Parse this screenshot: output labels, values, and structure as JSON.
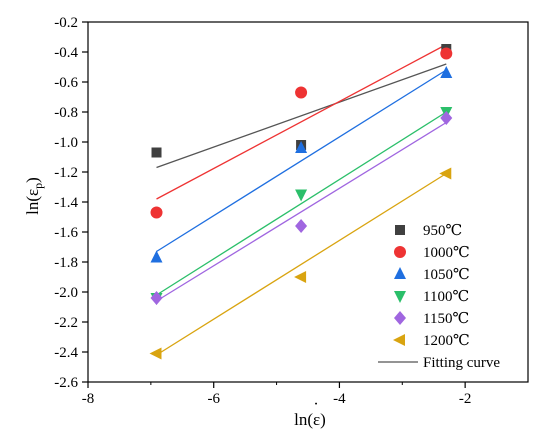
{
  "chart_data": {
    "type": "scatter",
    "xlabel": "ln(ε)",
    "ylabel_main": "ln(ε",
    "ylabel_sub": "p",
    "ylabel_close": ")",
    "xlim": [
      -8,
      -1
    ],
    "ylim": [
      -2.6,
      -0.2
    ],
    "xticks": [
      -8,
      -6,
      -4,
      -2
    ],
    "xtick_labels": [
      "-8",
      "-6",
      "-4",
      "-2"
    ],
    "yticks": [
      -0.2,
      -0.4,
      -0.6,
      -0.8,
      -1.0,
      -1.2,
      -1.4,
      -1.6,
      -1.8,
      -2.0,
      -2.2,
      -2.4,
      -2.6
    ],
    "ytick_labels": [
      "-0.2",
      "-0.4",
      "-0.6",
      "-0.8",
      "-1.0",
      "-1.2",
      "-1.4",
      "-1.6",
      "-1.8",
      "-2.0",
      "-2.2",
      "-2.4",
      "-2.6"
    ],
    "legend_position": "bottom-right",
    "series": [
      {
        "name": "950℃",
        "marker": "square",
        "color": "#404040",
        "x": [
          -6.91,
          -4.61,
          -2.3
        ],
        "y": [
          -1.07,
          -1.02,
          -0.38
        ],
        "fit": {
          "x": [
            -6.91,
            -2.3
          ],
          "y": [
            -1.17,
            -0.48
          ],
          "color": "#555555"
        }
      },
      {
        "name": "1000℃",
        "marker": "circle",
        "color": "#ee3333",
        "x": [
          -6.91,
          -4.61,
          -2.3
        ],
        "y": [
          -1.47,
          -0.67,
          -0.41
        ],
        "fit": {
          "x": [
            -6.91,
            -2.3
          ],
          "y": [
            -1.38,
            -0.35
          ],
          "color": "#ee3333"
        }
      },
      {
        "name": "1050℃",
        "marker": "triangle-up",
        "color": "#1f6fe0",
        "x": [
          -6.91,
          -4.61,
          -2.3
        ],
        "y": [
          -1.77,
          -1.04,
          -0.54
        ],
        "fit": {
          "x": [
            -6.91,
            -2.3
          ],
          "y": [
            -1.73,
            -0.52
          ],
          "color": "#1f6fe0"
        }
      },
      {
        "name": "1100℃",
        "marker": "triangle-down",
        "color": "#2bbf6a",
        "x": [
          -6.91,
          -4.61,
          -2.3
        ],
        "y": [
          -2.04,
          -1.35,
          -0.8
        ],
        "fit": {
          "x": [
            -6.91,
            -2.3
          ],
          "y": [
            -2.02,
            -0.8
          ],
          "color": "#2bbf6a"
        }
      },
      {
        "name": "1150℃",
        "marker": "diamond",
        "color": "#a066e0",
        "x": [
          -6.91,
          -4.61,
          -2.3
        ],
        "y": [
          -2.04,
          -1.56,
          -0.84
        ],
        "fit": {
          "x": [
            -6.91,
            -2.3
          ],
          "y": [
            -2.06,
            -0.87
          ],
          "color": "#a066e0"
        }
      },
      {
        "name": "1200℃",
        "marker": "triangle-left",
        "color": "#d9a410",
        "x": [
          -6.91,
          -4.61,
          -2.3
        ],
        "y": [
          -2.41,
          -1.9,
          -1.21
        ],
        "fit": {
          "x": [
            -6.91,
            -2.3
          ],
          "y": [
            -2.42,
            -1.21
          ],
          "color": "#d9a410"
        }
      }
    ],
    "fit_legend": {
      "name": "Fitting curve",
      "color": "#555555"
    }
  }
}
